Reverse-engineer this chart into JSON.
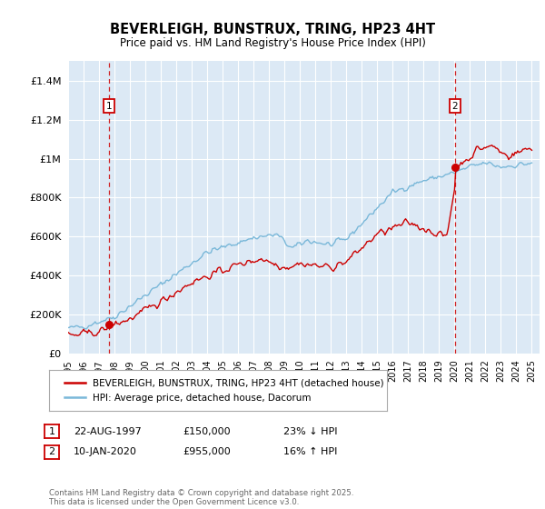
{
  "title": "BEVERLEIGH, BUNSTRUX, TRING, HP23 4HT",
  "subtitle": "Price paid vs. HM Land Registry's House Price Index (HPI)",
  "plot_bg_color": "#dce9f5",
  "ylim": [
    0,
    1500000
  ],
  "yticks": [
    0,
    200000,
    400000,
    600000,
    800000,
    1000000,
    1200000,
    1400000
  ],
  "ytick_labels": [
    "£0",
    "£200K",
    "£400K",
    "£600K",
    "£800K",
    "£1M",
    "£1.2M",
    "£1.4M"
  ],
  "x_start_year": 1995,
  "x_end_year": 2025,
  "legend_line1": "BEVERLEIGH, BUNSTRUX, TRING, HP23 4HT (detached house)",
  "legend_line2": "HPI: Average price, detached house, Dacorum",
  "annotation1_label": "1",
  "annotation1_date": "22-AUG-1997",
  "annotation1_price": "£150,000",
  "annotation1_hpi": "23% ↓ HPI",
  "annotation1_year": 1997.64,
  "annotation1_value": 150000,
  "annotation2_label": "2",
  "annotation2_date": "10-JAN-2020",
  "annotation2_price": "£955,000",
  "annotation2_hpi": "16% ↑ HPI",
  "annotation2_year": 2020.03,
  "annotation2_value": 955000,
  "footer": "Contains HM Land Registry data © Crown copyright and database right 2025.\nThis data is licensed under the Open Government Licence v3.0.",
  "hpi_color": "#7ab8d9",
  "price_color": "#cc0000",
  "vline_color": "#cc0000",
  "grid_color": "#ffffff",
  "ann_box_color": "#cc0000"
}
